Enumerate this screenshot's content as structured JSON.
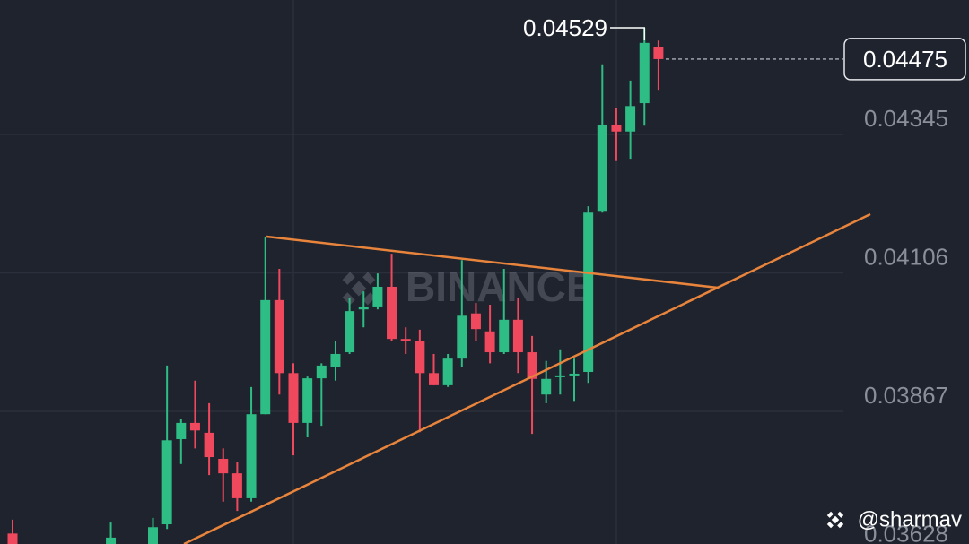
{
  "chart_data": {
    "type": "candlestick",
    "watermark": "BINANCE",
    "credit": "@sharmav",
    "ylim": [
      0.03638,
      0.04577
    ],
    "yticks": [
      0.03628,
      0.03867,
      0.04106,
      0.04345
    ],
    "grid": true,
    "up_color": "#2ebd85",
    "down_color": "#f0485d",
    "high_marker": 0.04529,
    "last_price": 0.04475,
    "open": [
      0.03656,
      null,
      null,
      null,
      null,
      null,
      null,
      0.03633,
      null,
      null,
      0.03638,
      0.03672,
      0.03819,
      0.03847,
      0.0383,
      0.03785,
      0.0376,
      0.03717,
      0.03862,
      0.04059,
      0.03933,
      0.03847,
      0.03924,
      0.03943,
      0.03969,
      0.04043,
      0.04048,
      0.04082,
      0.03992,
      0.03988,
      0.03933,
      0.03912,
      0.03958,
      0.04036,
      0.04005,
      0.03969,
      0.04025,
      0.03969,
      0.03896,
      0.03926,
      0.03929,
      0.03935,
      0.04213,
      0.04362,
      0.0435,
      0.04399,
      0.04495
    ],
    "high": [
      0.0368,
      null,
      null,
      null,
      null,
      null,
      null,
      0.03675,
      null,
      null,
      0.03683,
      0.03946,
      0.03853,
      0.0392,
      0.03881,
      0.03803,
      0.0378,
      0.03909,
      0.04167,
      0.04113,
      0.0395,
      0.03927,
      0.0395,
      0.03989,
      0.04063,
      0.04074,
      0.04105,
      0.04139,
      0.04012,
      0.04008,
      0.03966,
      0.03966,
      0.04128,
      0.04054,
      0.04051,
      0.04113,
      0.04063,
      0.03997,
      0.03954,
      0.03974,
      0.03958,
      0.04221,
      0.04466,
      0.04391,
      0.04438,
      0.04529,
      0.04507
    ],
    "low": [
      0.03633,
      null,
      null,
      null,
      null,
      null,
      null,
      0.0363,
      null,
      null,
      0.03633,
      0.03664,
      0.03776,
      0.03803,
      0.03757,
      0.03711,
      0.03695,
      0.03711,
      0.03862,
      0.03896,
      0.03791,
      0.03822,
      0.03842,
      0.0392,
      0.03966,
      0.04012,
      0.04043,
      0.03989,
      0.03966,
      0.03831,
      0.03912,
      0.03909,
      0.03943,
      0.03989,
      0.0395,
      0.03966,
      0.03933,
      0.03828,
      0.03881,
      0.03896,
      0.03885,
      0.03916,
      0.0421,
      0.04299,
      0.04303,
      0.0436,
      0.04422
    ],
    "close": [
      0.03638,
      null,
      null,
      null,
      null,
      null,
      null,
      0.03649,
      null,
      null,
      0.03667,
      0.03817,
      0.03847,
      0.03834,
      0.03788,
      0.0376,
      0.03717,
      0.03862,
      0.04059,
      0.03933,
      0.03847,
      0.03924,
      0.03946,
      0.03966,
      0.0404,
      0.04048,
      0.04082,
      0.03992,
      0.03988,
      0.03933,
      0.03912,
      0.03958,
      0.04032,
      0.04009,
      0.03969,
      0.04025,
      0.03969,
      0.03923,
      0.03923,
      0.03929,
      0.03932,
      0.0421,
      0.04362,
      0.0435,
      0.04394,
      0.04503,
      0.04475
    ]
  }
}
